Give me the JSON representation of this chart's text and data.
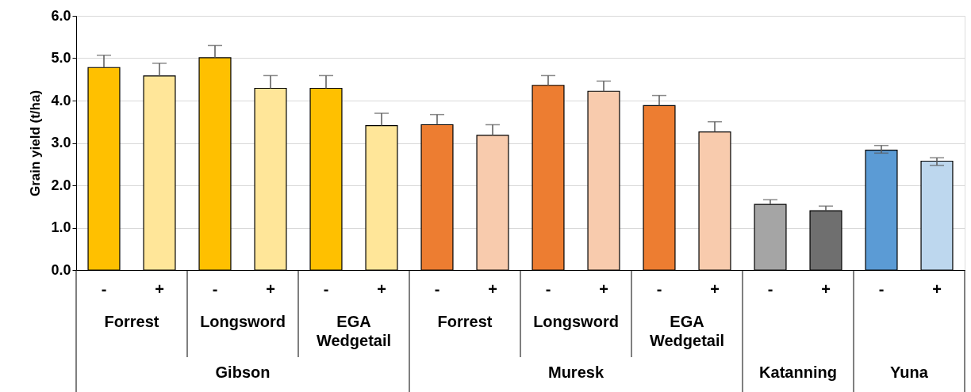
{
  "chart_data": {
    "type": "bar",
    "ylabel": "Grain yield (t/ha)",
    "categories": [
      "-",
      "+",
      "-",
      "+",
      "-",
      "+",
      "-",
      "+",
      "-",
      "+",
      "-",
      "+",
      "-",
      "+",
      "-",
      "+"
    ],
    "values": [
      4.78,
      4.58,
      5.01,
      4.29,
      4.29,
      3.41,
      3.43,
      3.18,
      4.36,
      4.22,
      3.88,
      3.26,
      1.55,
      1.4,
      2.83,
      2.57
    ],
    "errors": [
      [
        4.78,
        5.07
      ],
      [
        4.58,
        4.88
      ],
      [
        5.01,
        5.3
      ],
      [
        4.29,
        4.59
      ],
      [
        4.29,
        4.59
      ],
      [
        3.41,
        3.7
      ],
      [
        3.43,
        3.67
      ],
      [
        3.18,
        3.43
      ],
      [
        4.36,
        4.59
      ],
      [
        4.22,
        4.46
      ],
      [
        3.88,
        4.12
      ],
      [
        3.26,
        3.5
      ],
      [
        1.55,
        1.66
      ],
      [
        1.4,
        1.51
      ],
      [
        2.76,
        2.94
      ],
      [
        2.47,
        2.65
      ]
    ],
    "colors": [
      "#ffc000",
      "#ffe699",
      "#ffc000",
      "#ffe699",
      "#ffc000",
      "#ffe699",
      "#ed7d31",
      "#f8cbad",
      "#ed7d31",
      "#f8cbad",
      "#ed7d31",
      "#f8cbad",
      "#a5a5a5",
      "#6f6f6f",
      "#5b9bd5",
      "#bdd7ee"
    ],
    "ylim": [
      0,
      6
    ],
    "yticks": [
      {
        "value": 0,
        "label": "0.0"
      },
      {
        "value": 1,
        "label": "1.0"
      },
      {
        "value": 2,
        "label": "2.0"
      },
      {
        "value": 3,
        "label": "3.0"
      },
      {
        "value": 4,
        "label": "4.0"
      },
      {
        "value": 5,
        "label": "5.0"
      },
      {
        "value": 6,
        "label": "6.0"
      }
    ],
    "grid": "y",
    "annotations": [
      "Forrest",
      "Longsword",
      "EGA Wedgetail",
      "Forrest",
      "Longsword",
      "EGA Wedgetail",
      "Gibson",
      "Muresk",
      "Katanning",
      "Yuna"
    ]
  }
}
